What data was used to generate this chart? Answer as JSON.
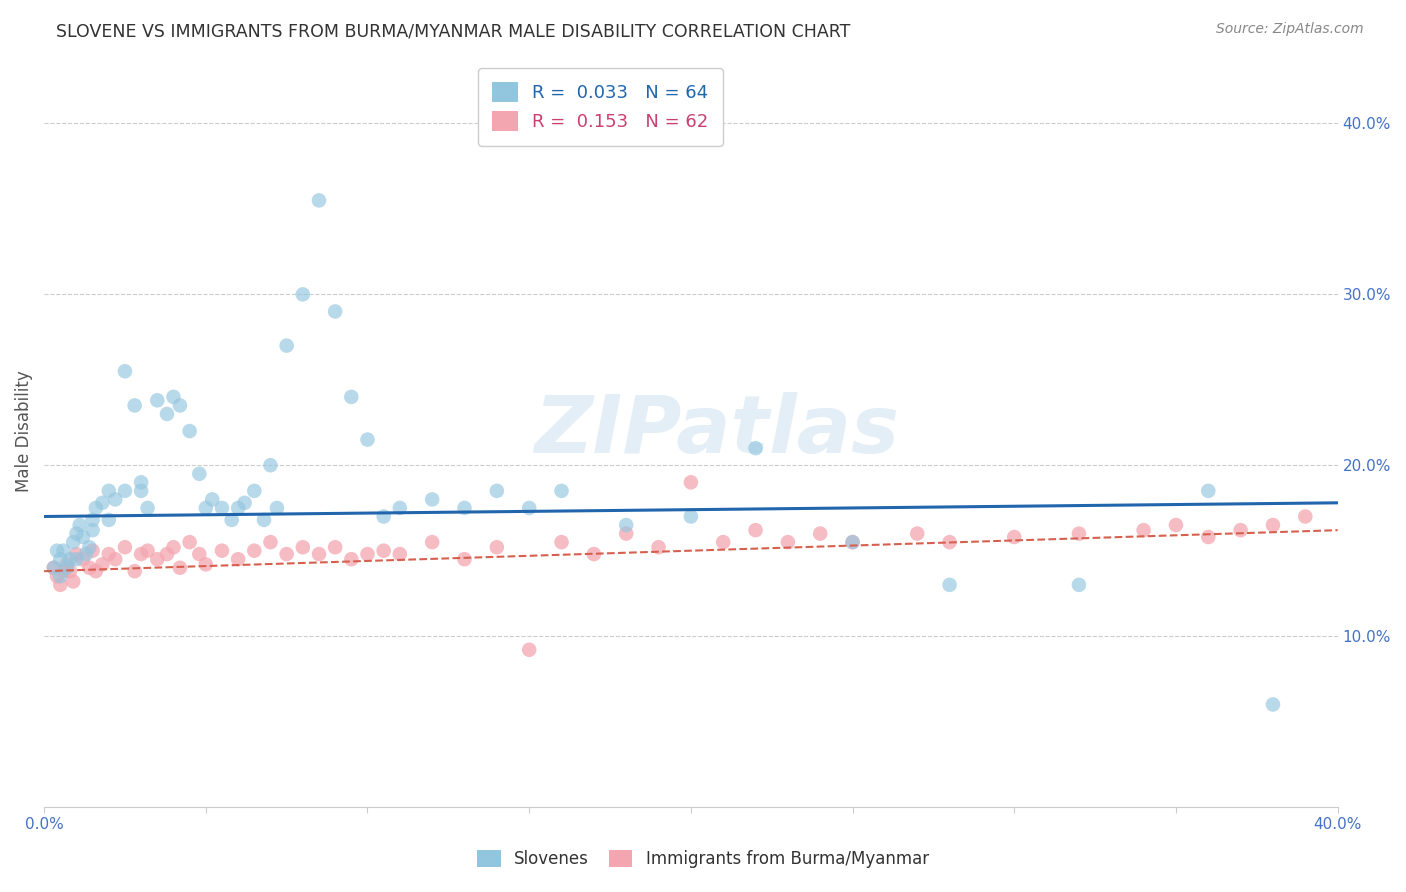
{
  "title": "SLOVENE VS IMMIGRANTS FROM BURMA/MYANMAR MALE DISABILITY CORRELATION CHART",
  "source": "Source: ZipAtlas.com",
  "ylabel": "Male Disability",
  "xlim": [
    0.0,
    0.4
  ],
  "ylim": [
    0.0,
    0.44
  ],
  "ytick_vals": [
    0.1,
    0.2,
    0.3,
    0.4
  ],
  "xtick_vals": [
    0.0,
    0.05,
    0.1,
    0.15,
    0.2,
    0.25,
    0.3,
    0.35,
    0.4
  ],
  "legend1_R": "0.033",
  "legend1_N": "64",
  "legend2_R": "0.153",
  "legend2_N": "62",
  "blue_color": "#92c5de",
  "pink_color": "#f4a6b0",
  "blue_line_color": "#2166ac",
  "pink_line_color": "#d6604d",
  "watermark_text": "ZIPatlas",
  "slovene_x": [
    0.003,
    0.004,
    0.005,
    0.005,
    0.006,
    0.007,
    0.008,
    0.009,
    0.01,
    0.01,
    0.011,
    0.012,
    0.013,
    0.014,
    0.015,
    0.015,
    0.016,
    0.018,
    0.02,
    0.02,
    0.022,
    0.025,
    0.025,
    0.028,
    0.03,
    0.03,
    0.032,
    0.035,
    0.038,
    0.04,
    0.042,
    0.045,
    0.048,
    0.05,
    0.052,
    0.055,
    0.058,
    0.06,
    0.062,
    0.065,
    0.068,
    0.07,
    0.072,
    0.075,
    0.08,
    0.085,
    0.09,
    0.095,
    0.1,
    0.105,
    0.11,
    0.12,
    0.13,
    0.14,
    0.15,
    0.16,
    0.18,
    0.2,
    0.22,
    0.25,
    0.28,
    0.32,
    0.36,
    0.38
  ],
  "slovene_y": [
    0.14,
    0.15,
    0.135,
    0.145,
    0.15,
    0.14,
    0.145,
    0.155,
    0.16,
    0.145,
    0.165,
    0.158,
    0.148,
    0.152,
    0.162,
    0.168,
    0.175,
    0.178,
    0.185,
    0.168,
    0.18,
    0.255,
    0.185,
    0.235,
    0.185,
    0.19,
    0.175,
    0.238,
    0.23,
    0.24,
    0.235,
    0.22,
    0.195,
    0.175,
    0.18,
    0.175,
    0.168,
    0.175,
    0.178,
    0.185,
    0.168,
    0.2,
    0.175,
    0.27,
    0.3,
    0.355,
    0.29,
    0.24,
    0.215,
    0.17,
    0.175,
    0.18,
    0.175,
    0.185,
    0.175,
    0.185,
    0.165,
    0.17,
    0.21,
    0.155,
    0.13,
    0.13,
    0.185,
    0.06
  ],
  "burma_x": [
    0.003,
    0.004,
    0.005,
    0.006,
    0.007,
    0.008,
    0.009,
    0.01,
    0.012,
    0.014,
    0.015,
    0.016,
    0.018,
    0.02,
    0.022,
    0.025,
    0.028,
    0.03,
    0.032,
    0.035,
    0.038,
    0.04,
    0.042,
    0.045,
    0.048,
    0.05,
    0.055,
    0.06,
    0.065,
    0.07,
    0.075,
    0.08,
    0.085,
    0.09,
    0.095,
    0.1,
    0.105,
    0.11,
    0.12,
    0.13,
    0.14,
    0.15,
    0.16,
    0.17,
    0.18,
    0.19,
    0.2,
    0.21,
    0.22,
    0.23,
    0.24,
    0.25,
    0.27,
    0.28,
    0.3,
    0.32,
    0.34,
    0.35,
    0.36,
    0.37,
    0.38,
    0.39
  ],
  "burma_y": [
    0.14,
    0.135,
    0.13,
    0.138,
    0.142,
    0.138,
    0.132,
    0.148,
    0.145,
    0.14,
    0.15,
    0.138,
    0.142,
    0.148,
    0.145,
    0.152,
    0.138,
    0.148,
    0.15,
    0.145,
    0.148,
    0.152,
    0.14,
    0.155,
    0.148,
    0.142,
    0.15,
    0.145,
    0.15,
    0.155,
    0.148,
    0.152,
    0.148,
    0.152,
    0.145,
    0.148,
    0.15,
    0.148,
    0.155,
    0.145,
    0.152,
    0.092,
    0.155,
    0.148,
    0.16,
    0.152,
    0.19,
    0.155,
    0.162,
    0.155,
    0.16,
    0.155,
    0.16,
    0.155,
    0.158,
    0.16,
    0.162,
    0.165,
    0.158,
    0.162,
    0.165,
    0.17
  ],
  "slovene_line_x": [
    0.0,
    0.4
  ],
  "slovene_line_y": [
    0.17,
    0.178
  ],
  "burma_line_x": [
    0.0,
    0.4
  ],
  "burma_line_y": [
    0.138,
    0.162
  ]
}
